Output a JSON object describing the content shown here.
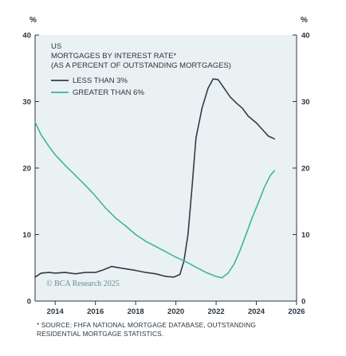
{
  "footnote": {
    "line1": "* SOURCE: FHFA NATIONAL MORTGAGE DATABASE, OUTSTANDING",
    "line2": "RESIDENTIAL MORTGAGE STATISTICS."
  },
  "watermark": "© BCA Research 2025",
  "chart_data": {
    "type": "line",
    "title": "US",
    "subtitle_lines": [
      "MORTGAGES BY INTEREST RATE*",
      "(AS A PERCENT OF OUTSTANDING MORTGAGES)"
    ],
    "y_unit_left": "%",
    "y_unit_right": "%",
    "xlim": [
      2013,
      2026
    ],
    "ylim": [
      0,
      40
    ],
    "x_ticks": [
      2014,
      2016,
      2018,
      2020,
      2022,
      2024,
      2026
    ],
    "y_ticks": [
      0,
      10,
      20,
      30,
      40
    ],
    "grid": false,
    "legend_position": "top-left",
    "series": [
      {
        "name": "LESS THAN 3%",
        "color": "#2e3d4a",
        "points": [
          [
            2013.0,
            3.6
          ],
          [
            2013.3,
            4.2
          ],
          [
            2013.7,
            4.3
          ],
          [
            2014.0,
            4.2
          ],
          [
            2014.5,
            4.3
          ],
          [
            2015.0,
            4.1
          ],
          [
            2015.5,
            4.3
          ],
          [
            2016.0,
            4.3
          ],
          [
            2016.4,
            4.7
          ],
          [
            2016.8,
            5.2
          ],
          [
            2017.2,
            5.0
          ],
          [
            2017.6,
            4.8
          ],
          [
            2018.0,
            4.6
          ],
          [
            2018.5,
            4.3
          ],
          [
            2019.0,
            4.1
          ],
          [
            2019.5,
            3.7
          ],
          [
            2019.9,
            3.6
          ],
          [
            2020.2,
            4.0
          ],
          [
            2020.4,
            6.0
          ],
          [
            2020.6,
            10.0
          ],
          [
            2020.8,
            17.0
          ],
          [
            2021.0,
            24.5
          ],
          [
            2021.3,
            29.0
          ],
          [
            2021.6,
            32.0
          ],
          [
            2021.85,
            33.4
          ],
          [
            2022.1,
            33.3
          ],
          [
            2022.4,
            32.0
          ],
          [
            2022.7,
            30.7
          ],
          [
            2023.0,
            29.8
          ],
          [
            2023.3,
            29.0
          ],
          [
            2023.6,
            27.8
          ],
          [
            2024.0,
            26.8
          ],
          [
            2024.3,
            25.8
          ],
          [
            2024.6,
            24.8
          ],
          [
            2024.9,
            24.4
          ]
        ]
      },
      {
        "name": "GREATER THAN 6%",
        "color": "#3fb59b",
        "points": [
          [
            2013.0,
            26.9
          ],
          [
            2013.3,
            25.0
          ],
          [
            2013.7,
            23.2
          ],
          [
            2014.0,
            22.0
          ],
          [
            2014.5,
            20.4
          ],
          [
            2015.0,
            18.9
          ],
          [
            2015.5,
            17.4
          ],
          [
            2016.0,
            15.8
          ],
          [
            2016.5,
            14.0
          ],
          [
            2017.0,
            12.5
          ],
          [
            2017.5,
            11.3
          ],
          [
            2018.0,
            10.0
          ],
          [
            2018.5,
            9.0
          ],
          [
            2019.0,
            8.2
          ],
          [
            2019.5,
            7.4
          ],
          [
            2020.0,
            6.6
          ],
          [
            2020.5,
            5.9
          ],
          [
            2021.0,
            5.1
          ],
          [
            2021.5,
            4.3
          ],
          [
            2022.0,
            3.7
          ],
          [
            2022.3,
            3.5
          ],
          [
            2022.6,
            4.2
          ],
          [
            2022.9,
            5.6
          ],
          [
            2023.2,
            7.7
          ],
          [
            2023.5,
            10.1
          ],
          [
            2023.8,
            12.6
          ],
          [
            2024.1,
            14.8
          ],
          [
            2024.4,
            17.1
          ],
          [
            2024.7,
            18.9
          ],
          [
            2024.9,
            19.6
          ]
        ]
      }
    ]
  }
}
